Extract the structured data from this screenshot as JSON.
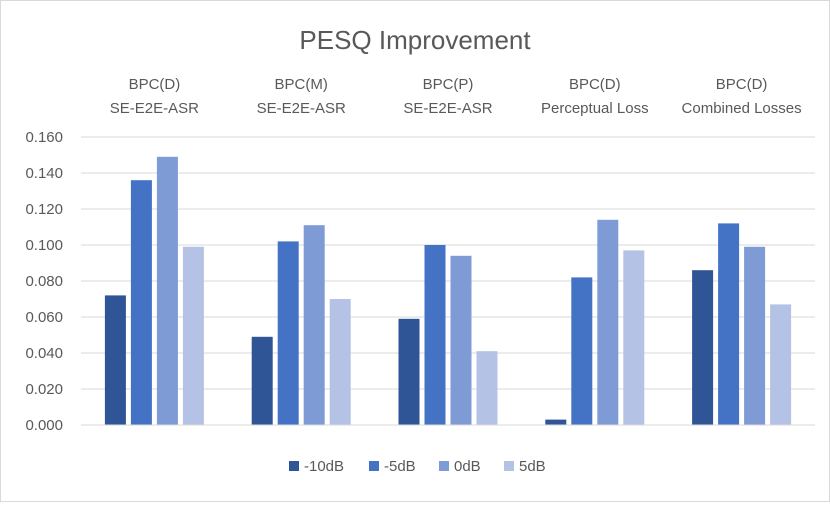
{
  "chart_data": {
    "type": "bar",
    "title": "PESQ Improvement",
    "categories": [
      [
        "BPC(D)",
        "SE-E2E-ASR"
      ],
      [
        "BPC(M)",
        "SE-E2E-ASR"
      ],
      [
        "BPC(P)",
        "SE-E2E-ASR"
      ],
      [
        "BPC(D)",
        "Perceptual Loss"
      ],
      [
        "BPC(D)",
        "Combined Losses"
      ]
    ],
    "series": [
      {
        "name": "-10dB",
        "color": "#2f5597",
        "values": [
          0.072,
          0.049,
          0.059,
          0.003,
          0.086
        ]
      },
      {
        "name": "-5dB",
        "color": "#4472c4",
        "values": [
          0.136,
          0.102,
          0.1,
          0.082,
          0.112
        ]
      },
      {
        "name": "0dB",
        "color": "#7f9bd6",
        "values": [
          0.149,
          0.111,
          0.094,
          0.114,
          0.099
        ]
      },
      {
        "name": "5dB",
        "color": "#b4c3e5",
        "values": [
          0.099,
          0.07,
          0.041,
          0.097,
          0.067
        ]
      }
    ],
    "ylim": [
      0,
      0.16
    ],
    "yticks": [
      "0.000",
      "0.020",
      "0.040",
      "0.060",
      "0.080",
      "0.100",
      "0.120",
      "0.140",
      "0.160"
    ],
    "grid": true,
    "legend_position": "bottom",
    "xlabel": "",
    "ylabel": ""
  }
}
